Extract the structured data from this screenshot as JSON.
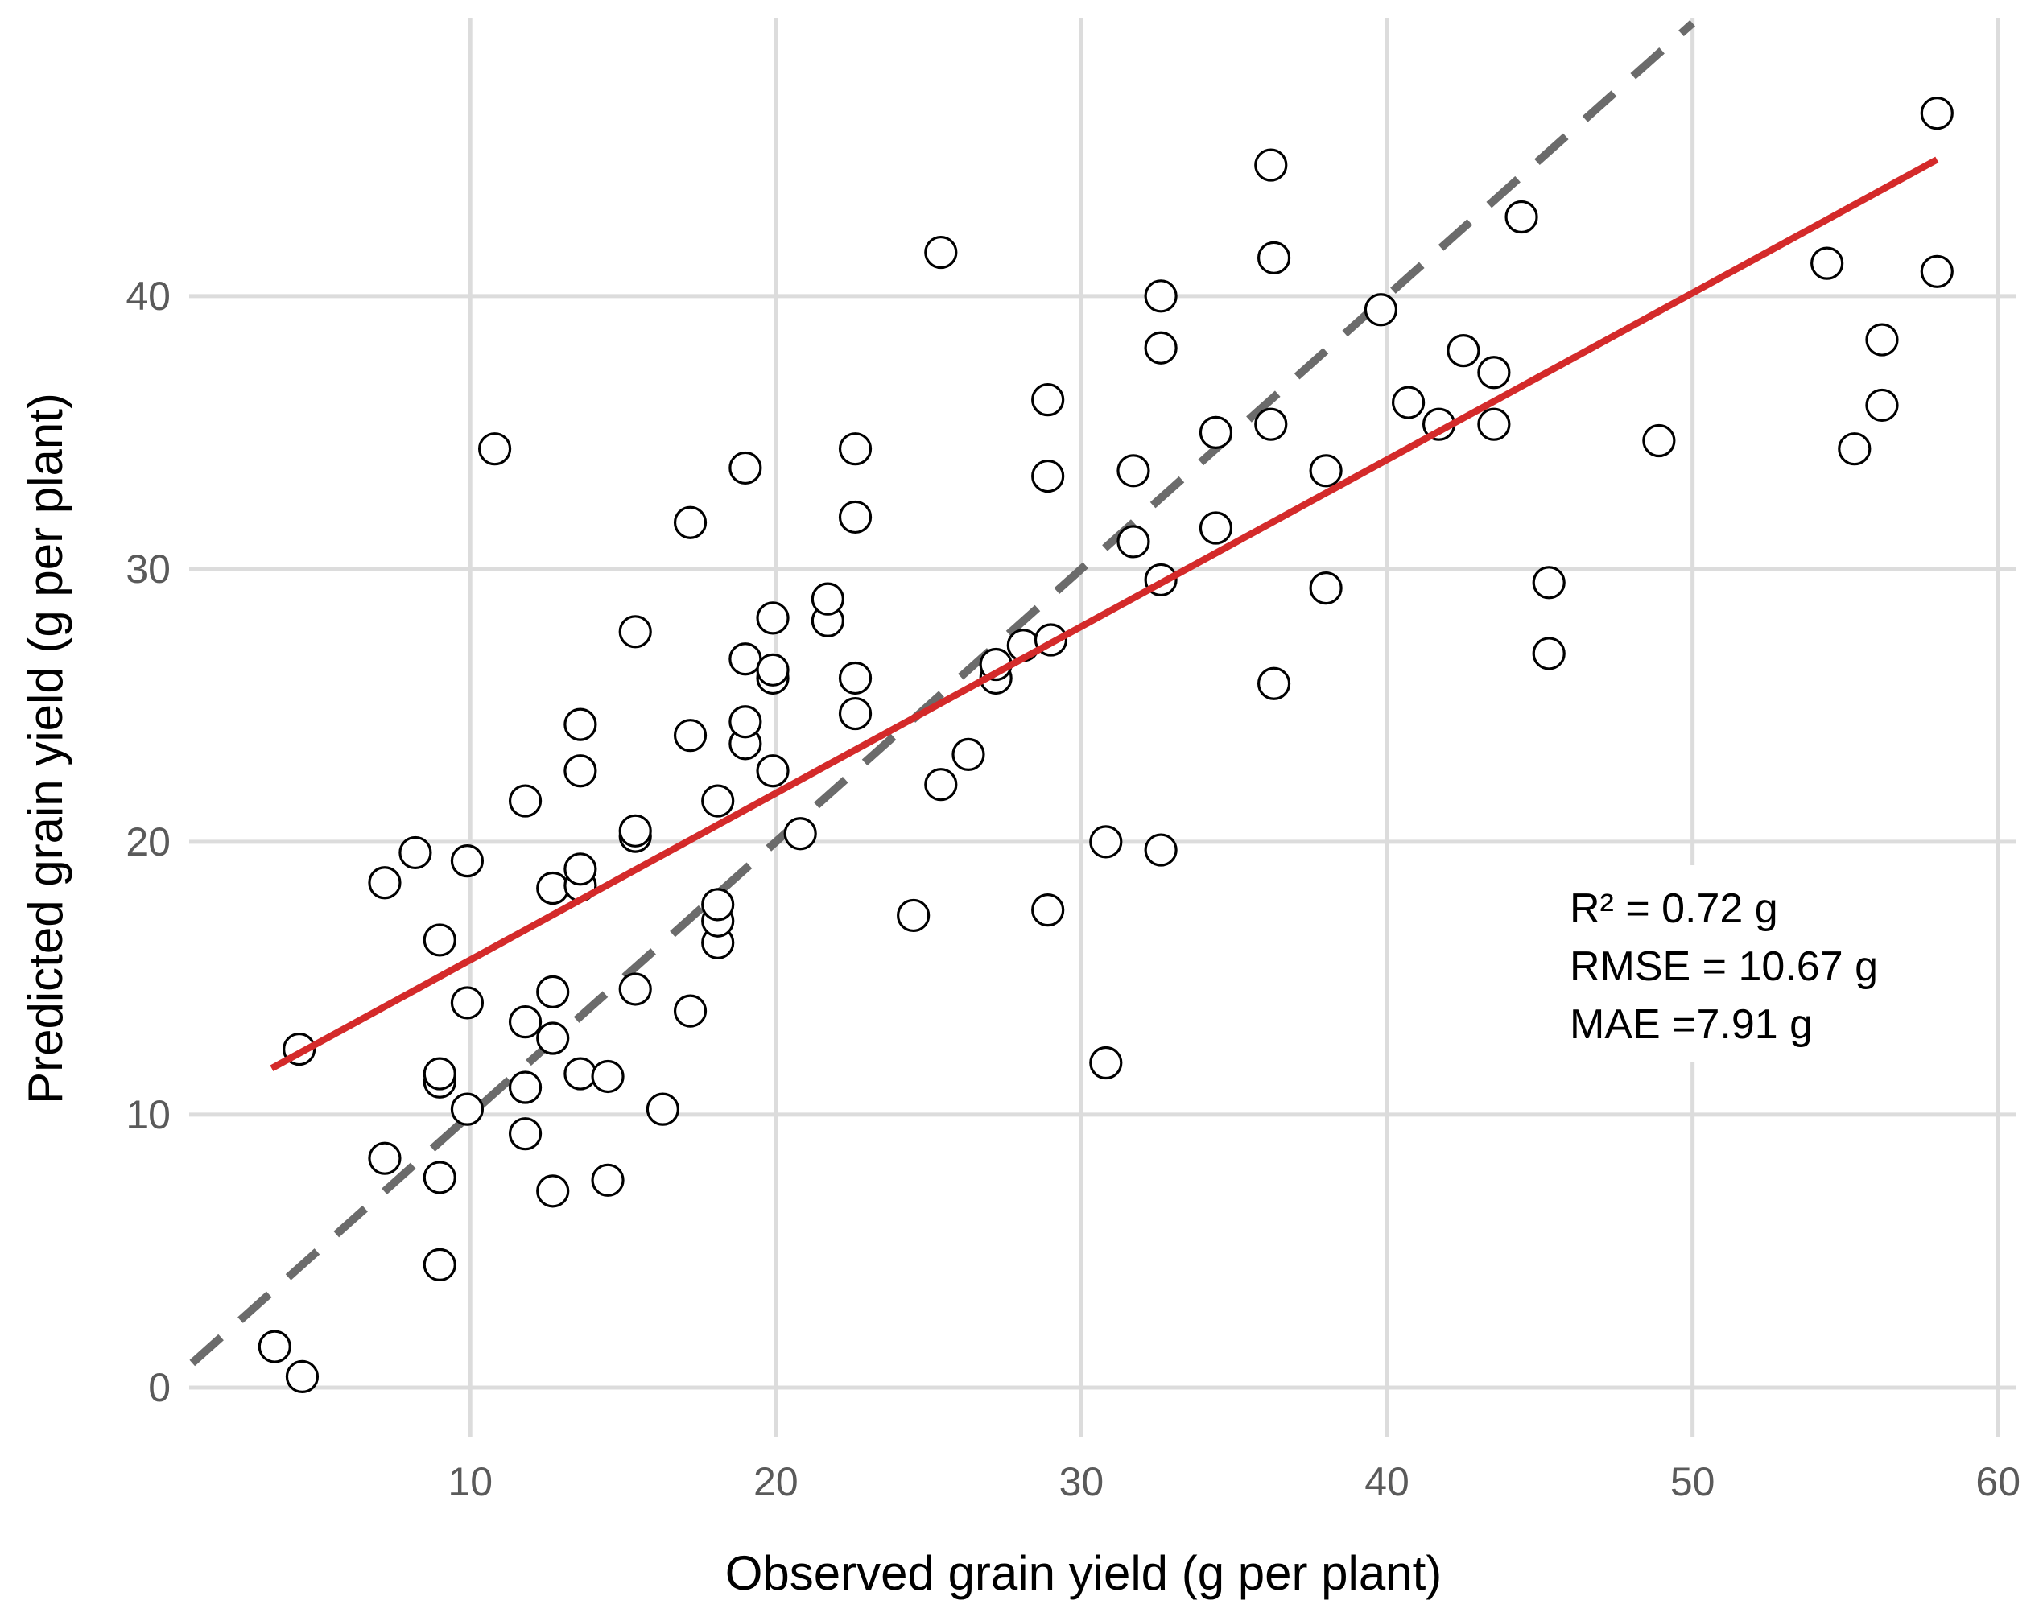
{
  "chart_data": {
    "type": "scatter",
    "title": "",
    "xlabel": "Observed grain yield (g per plant)",
    "ylabel": "Predicted grain yield (g per plant)",
    "xlim": [
      0.8,
      60.6
    ],
    "ylim": [
      -1.8,
      50.2
    ],
    "x_ticks": [
      10,
      20,
      30,
      40,
      50,
      60
    ],
    "y_ticks": [
      0,
      10,
      20,
      30,
      40
    ],
    "grid": true,
    "legend": "none",
    "colors": {
      "points_fill": "#ffffff",
      "points_stroke": "#000000",
      "fit_line": "#d42a2a",
      "identity_line": "#6b6b6b",
      "grid": "#dcdcdc"
    },
    "identity_line": {
      "style": "dashed",
      "x": [
        0.9,
        50.0
      ],
      "y": [
        0.9,
        50.0
      ]
    },
    "fit_line": {
      "style": "solid",
      "x": [
        3.5,
        58.0
      ],
      "y": [
        11.7,
        45.0
      ]
    },
    "stats": [
      "R² = 0.72 g",
      "RMSE = 10.67 g",
      "MAE =7.91 g"
    ],
    "series": [
      {
        "x": [
          3.6,
          4.5,
          4.4,
          7.2,
          7.2,
          8.2,
          9.0,
          9.0,
          9.0,
          9.0,
          9.0,
          9.9,
          9.9,
          9.9,
          10.8,
          11.8,
          11.8,
          11.8,
          11.8,
          12.7,
          12.7,
          12.7,
          12.7,
          13.6,
          13.6,
          13.6,
          13.6,
          13.6,
          14.5,
          14.5,
          15.4,
          15.4,
          15.4,
          15.4,
          16.3,
          17.2,
          17.2,
          17.2,
          18.1,
          18.1,
          18.1,
          18.1,
          19.0,
          19.0,
          19.0,
          19.0,
          19.9,
          19.9,
          19.9,
          19.9,
          20.8,
          21.7,
          21.7,
          22.6,
          22.6,
          22.6,
          22.6,
          24.5,
          25.4,
          25.4,
          26.3,
          27.2,
          27.2,
          28.1,
          28.9,
          28.9,
          29.0,
          28.9,
          30.8,
          30.8,
          31.7,
          31.7,
          32.6,
          32.6,
          32.6,
          32.6,
          34.4,
          34.4,
          36.3,
          36.2,
          36.3,
          36.2,
          38.0,
          38.0,
          39.8,
          40.7,
          41.7,
          42.5,
          43.5,
          43.5,
          44.4,
          45.3,
          45.3,
          48.9,
          54.4,
          55.3,
          56.2,
          56.2,
          58.0,
          58.0
        ],
        "y": [
          1.5,
          0.4,
          12.4,
          8.4,
          18.5,
          19.6,
          4.5,
          7.7,
          11.2,
          11.5,
          16.4,
          10.2,
          14.1,
          19.3,
          34.4,
          9.3,
          11.0,
          13.4,
          21.5,
          7.2,
          12.8,
          14.5,
          18.3,
          11.5,
          18.4,
          19.0,
          22.6,
          24.3,
          7.6,
          11.4,
          14.6,
          20.2,
          20.4,
          27.7,
          10.2,
          13.8,
          23.9,
          31.7,
          16.3,
          17.1,
          17.7,
          21.5,
          23.6,
          24.4,
          26.7,
          33.7,
          22.6,
          26.0,
          26.3,
          28.2,
          20.3,
          28.1,
          28.9,
          24.7,
          26.0,
          31.9,
          34.4,
          17.3,
          22.1,
          41.6,
          23.2,
          26.0,
          26.5,
          27.2,
          17.5,
          33.4,
          27.4,
          36.2,
          11.9,
          20.0,
          31.0,
          33.6,
          19.7,
          29.6,
          38.1,
          40.0,
          31.5,
          35.0,
          25.8,
          35.3,
          41.4,
          44.8,
          29.3,
          33.6,
          39.5,
          36.1,
          35.3,
          38.0,
          35.3,
          37.2,
          42.9,
          26.9,
          29.5,
          34.7,
          41.2,
          34.4,
          36.0,
          38.4,
          40.9,
          46.7
        ]
      }
    ]
  }
}
